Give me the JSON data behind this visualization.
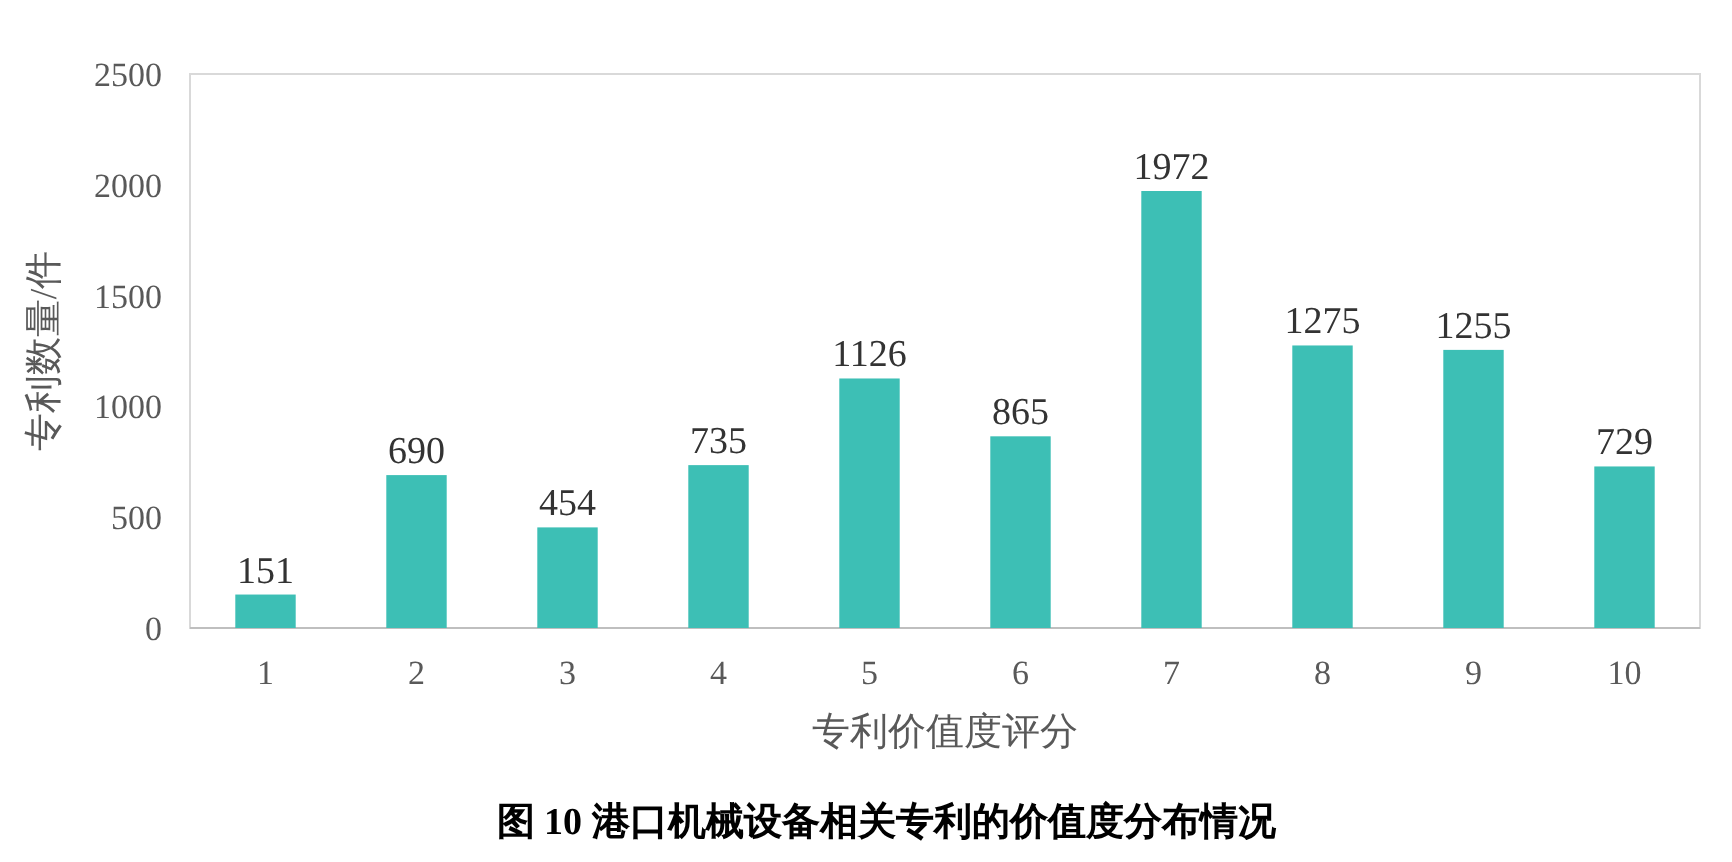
{
  "chart_data": {
    "type": "bar",
    "title": "图 10 港口机械设备相关专利的价值度分布情况",
    "xlabel": "专利价值度评分",
    "ylabel": "专利数量/件",
    "categories": [
      "1",
      "2",
      "3",
      "4",
      "5",
      "6",
      "7",
      "8",
      "9",
      "10"
    ],
    "values": [
      151,
      690,
      454,
      735,
      1126,
      865,
      1972,
      1275,
      1255,
      729
    ],
    "color": "#3dbfb5",
    "ylim": [
      0,
      2500
    ],
    "yticks": [
      0,
      500,
      1000,
      1500,
      2000,
      2500
    ],
    "grid": false,
    "data_labels": true
  }
}
